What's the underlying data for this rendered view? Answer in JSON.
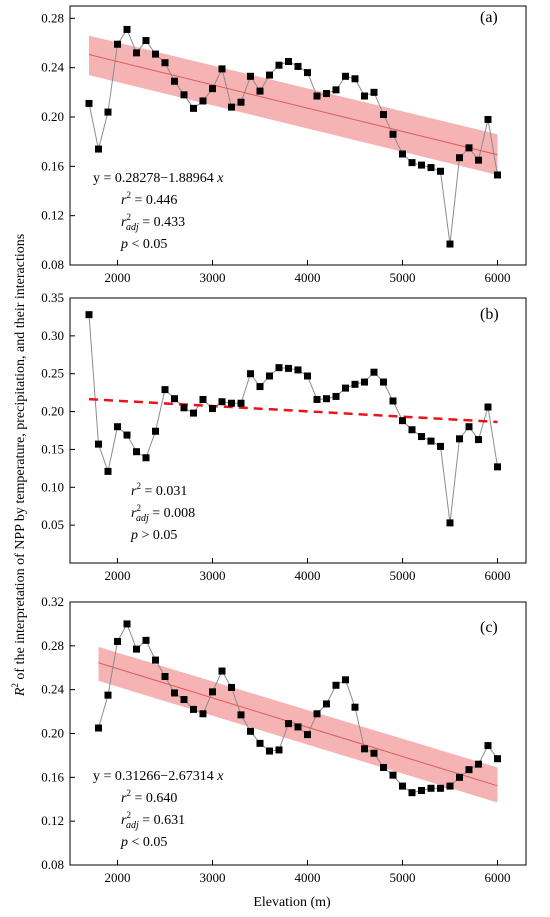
{
  "figure": {
    "ylabel_prefix": "R",
    "ylabel_sup": "2",
    "ylabel_rest": " of the interpretation of NPP by temperature, precipitation, and their interactions",
    "xlabel": "Elevation (m)"
  },
  "colors": {
    "points": "#000000",
    "connector": "#8c8c8c",
    "fit_line": "#e05a5a",
    "ci_band": "#f19a9a",
    "dashed_fit": "#e8141c"
  },
  "chart_data": [
    {
      "type": "scatter",
      "panel": "(a)",
      "x": [
        1700,
        1800,
        1900,
        2000,
        2100,
        2200,
        2300,
        2400,
        2500,
        2600,
        2700,
        2800,
        2900,
        3000,
        3100,
        3200,
        3300,
        3400,
        3500,
        3600,
        3700,
        3800,
        3900,
        4000,
        4100,
        4200,
        4300,
        4400,
        4500,
        4600,
        4700,
        4800,
        4900,
        5000,
        5100,
        5200,
        5300,
        5400,
        5500,
        5600,
        5700,
        5800,
        5900,
        6000
      ],
      "y": [
        0.211,
        0.174,
        0.204,
        0.259,
        0.271,
        0.252,
        0.262,
        0.251,
        0.244,
        0.229,
        0.218,
        0.207,
        0.213,
        0.223,
        0.239,
        0.208,
        0.212,
        0.233,
        0.221,
        0.234,
        0.242,
        0.245,
        0.241,
        0.236,
        0.217,
        0.219,
        0.222,
        0.233,
        0.231,
        0.217,
        0.22,
        0.202,
        0.186,
        0.17,
        0.163,
        0.161,
        0.159,
        0.156,
        0.097,
        0.167,
        0.175,
        0.165,
        0.198,
        0.153
      ],
      "fit": {
        "intercept": 0.28278,
        "slope_per_km": -0.0188964,
        "style": "solid"
      },
      "ci_band": {
        "x": [
          1700,
          6000
        ],
        "lower": [
          0.234,
          0.153
        ],
        "upper": [
          0.266,
          0.186
        ]
      },
      "xlim": [
        1500,
        6300
      ],
      "ylim": [
        0.08,
        0.29
      ],
      "xticks": [
        2000,
        3000,
        4000,
        5000,
        6000
      ],
      "yticks": [
        0.08,
        0.12,
        0.16,
        0.2,
        0.24,
        0.28
      ],
      "ytick_labels": [
        "0.08",
        "0.12",
        "0.16",
        "0.20",
        "0.24",
        "0.28"
      ],
      "stats": {
        "equation": "y = 0.28278−1.88964 x",
        "r2_label": "r",
        "r2_value": " = 0.446",
        "r2adj_label": "r",
        "r2adj_sub": "adj",
        "r2adj_value": " = 0.433",
        "p_label": "p",
        "p_value": " < 0.05"
      }
    },
    {
      "type": "scatter",
      "panel": "(b)",
      "x": [
        1700,
        1800,
        1900,
        2000,
        2100,
        2200,
        2300,
        2400,
        2500,
        2600,
        2700,
        2800,
        2900,
        3000,
        3100,
        3200,
        3300,
        3400,
        3500,
        3600,
        3700,
        3800,
        3900,
        4000,
        4100,
        4200,
        4300,
        4400,
        4500,
        4600,
        4700,
        4800,
        4900,
        5000,
        5100,
        5200,
        5300,
        5400,
        5500,
        5600,
        5700,
        5800,
        5900,
        6000
      ],
      "y": [
        0.328,
        0.157,
        0.121,
        0.18,
        0.169,
        0.147,
        0.139,
        0.174,
        0.229,
        0.217,
        0.205,
        0.198,
        0.216,
        0.204,
        0.213,
        0.211,
        0.211,
        0.25,
        0.233,
        0.247,
        0.258,
        0.257,
        0.255,
        0.247,
        0.216,
        0.217,
        0.22,
        0.231,
        0.236,
        0.239,
        0.252,
        0.239,
        0.214,
        0.188,
        0.176,
        0.167,
        0.161,
        0.154,
        0.053,
        0.164,
        0.18,
        0.163,
        0.206,
        0.127
      ],
      "fit": {
        "intercept": 0.2283,
        "slope_per_km": -0.007,
        "style": "dashed"
      },
      "xlim": [
        1500,
        6300
      ],
      "ylim": [
        0.0,
        0.35
      ],
      "xticks": [
        2000,
        3000,
        4000,
        5000,
        6000
      ],
      "yticks": [
        0.05,
        0.1,
        0.15,
        0.2,
        0.25,
        0.3,
        0.35
      ],
      "ytick_labels": [
        "0.05",
        "0.10",
        "0.15",
        "0.20",
        "0.25",
        "0.30",
        "0.35"
      ],
      "stats": {
        "r2_label": "r",
        "r2_value": " = 0.031",
        "r2adj_label": "r",
        "r2adj_sub": "adj",
        "r2adj_value": " = 0.008",
        "p_label": "p",
        "p_value": " > 0.05"
      }
    },
    {
      "type": "scatter",
      "panel": "(c)",
      "x": [
        1800,
        1900,
        2000,
        2100,
        2200,
        2300,
        2400,
        2500,
        2600,
        2700,
        2800,
        2900,
        3000,
        3100,
        3200,
        3300,
        3400,
        3500,
        3600,
        3700,
        3800,
        3900,
        4000,
        4100,
        4200,
        4300,
        4400,
        4500,
        4600,
        4700,
        4800,
        4900,
        5000,
        5100,
        5200,
        5300,
        5400,
        5500,
        5600,
        5700,
        5800,
        5900,
        6000
      ],
      "y": [
        0.205,
        0.235,
        0.284,
        0.3,
        0.277,
        0.285,
        0.267,
        0.252,
        0.237,
        0.231,
        0.222,
        0.218,
        0.238,
        0.257,
        0.242,
        0.217,
        0.202,
        0.191,
        0.184,
        0.185,
        0.209,
        0.206,
        0.199,
        0.218,
        0.227,
        0.244,
        0.249,
        0.224,
        0.186,
        0.182,
        0.169,
        0.162,
        0.152,
        0.146,
        0.148,
        0.15,
        0.15,
        0.152,
        0.16,
        0.167,
        0.172,
        0.189,
        0.177
      ],
      "fit": {
        "intercept": 0.31266,
        "slope_per_km": -0.0267314,
        "style": "solid"
      },
      "ci_band": {
        "x": [
          1800,
          6000
        ],
        "lower": [
          0.248,
          0.137
        ],
        "upper": [
          0.279,
          0.169
        ]
      },
      "xlim": [
        1500,
        6300
      ],
      "ylim": [
        0.08,
        0.32
      ],
      "xticks": [
        2000,
        3000,
        4000,
        5000,
        6000
      ],
      "yticks": [
        0.08,
        0.12,
        0.16,
        0.2,
        0.24,
        0.28,
        0.32
      ],
      "ytick_labels": [
        "0.08",
        "0.12",
        "0.16",
        "0.20",
        "0.24",
        "0.28",
        "0.32"
      ],
      "stats": {
        "equation": "y = 0.31266−2.67314 x",
        "r2_label": "r",
        "r2_value": " = 0.640",
        "r2adj_label": "r",
        "r2adj_sub": "adj",
        "r2adj_value": " = 0.631",
        "p_label": "p",
        "p_value": " < 0.05"
      }
    }
  ]
}
